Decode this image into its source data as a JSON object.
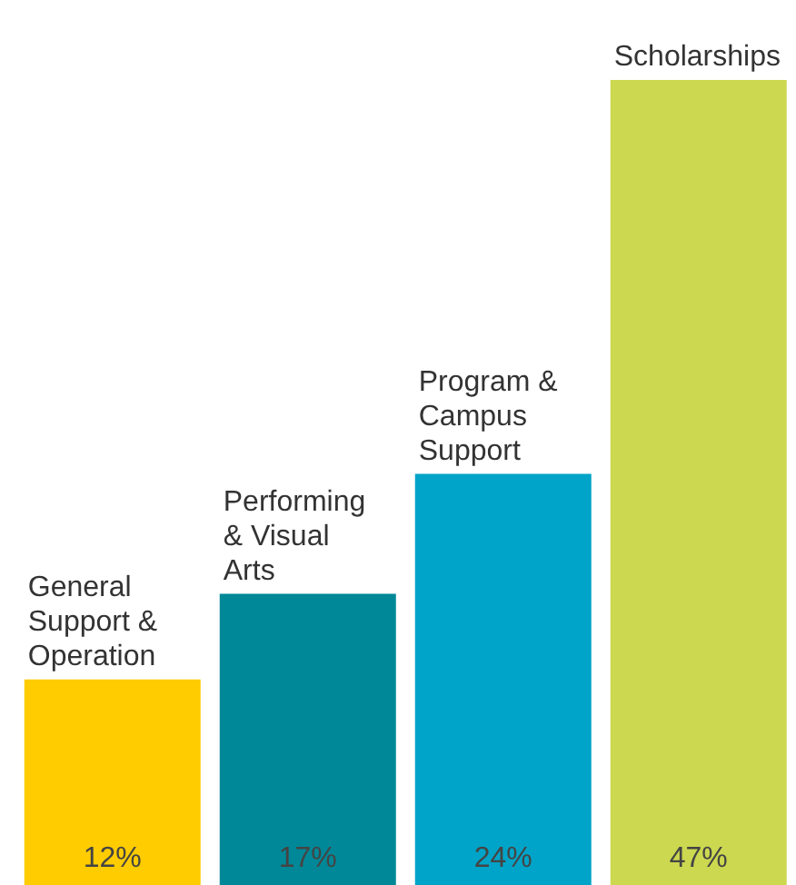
{
  "chart_data": {
    "type": "bar",
    "categories": [
      "General Support & Operation",
      "Performing & Visual Arts",
      "Program & Campus Support",
      "Scholarships"
    ],
    "values": [
      12,
      17,
      24,
      47
    ],
    "colors": [
      "#ffcc00",
      "#008898",
      "#00a4c8",
      "#ccd84f"
    ],
    "value_labels": [
      "12%",
      "17%",
      "24%",
      "47%"
    ]
  }
}
